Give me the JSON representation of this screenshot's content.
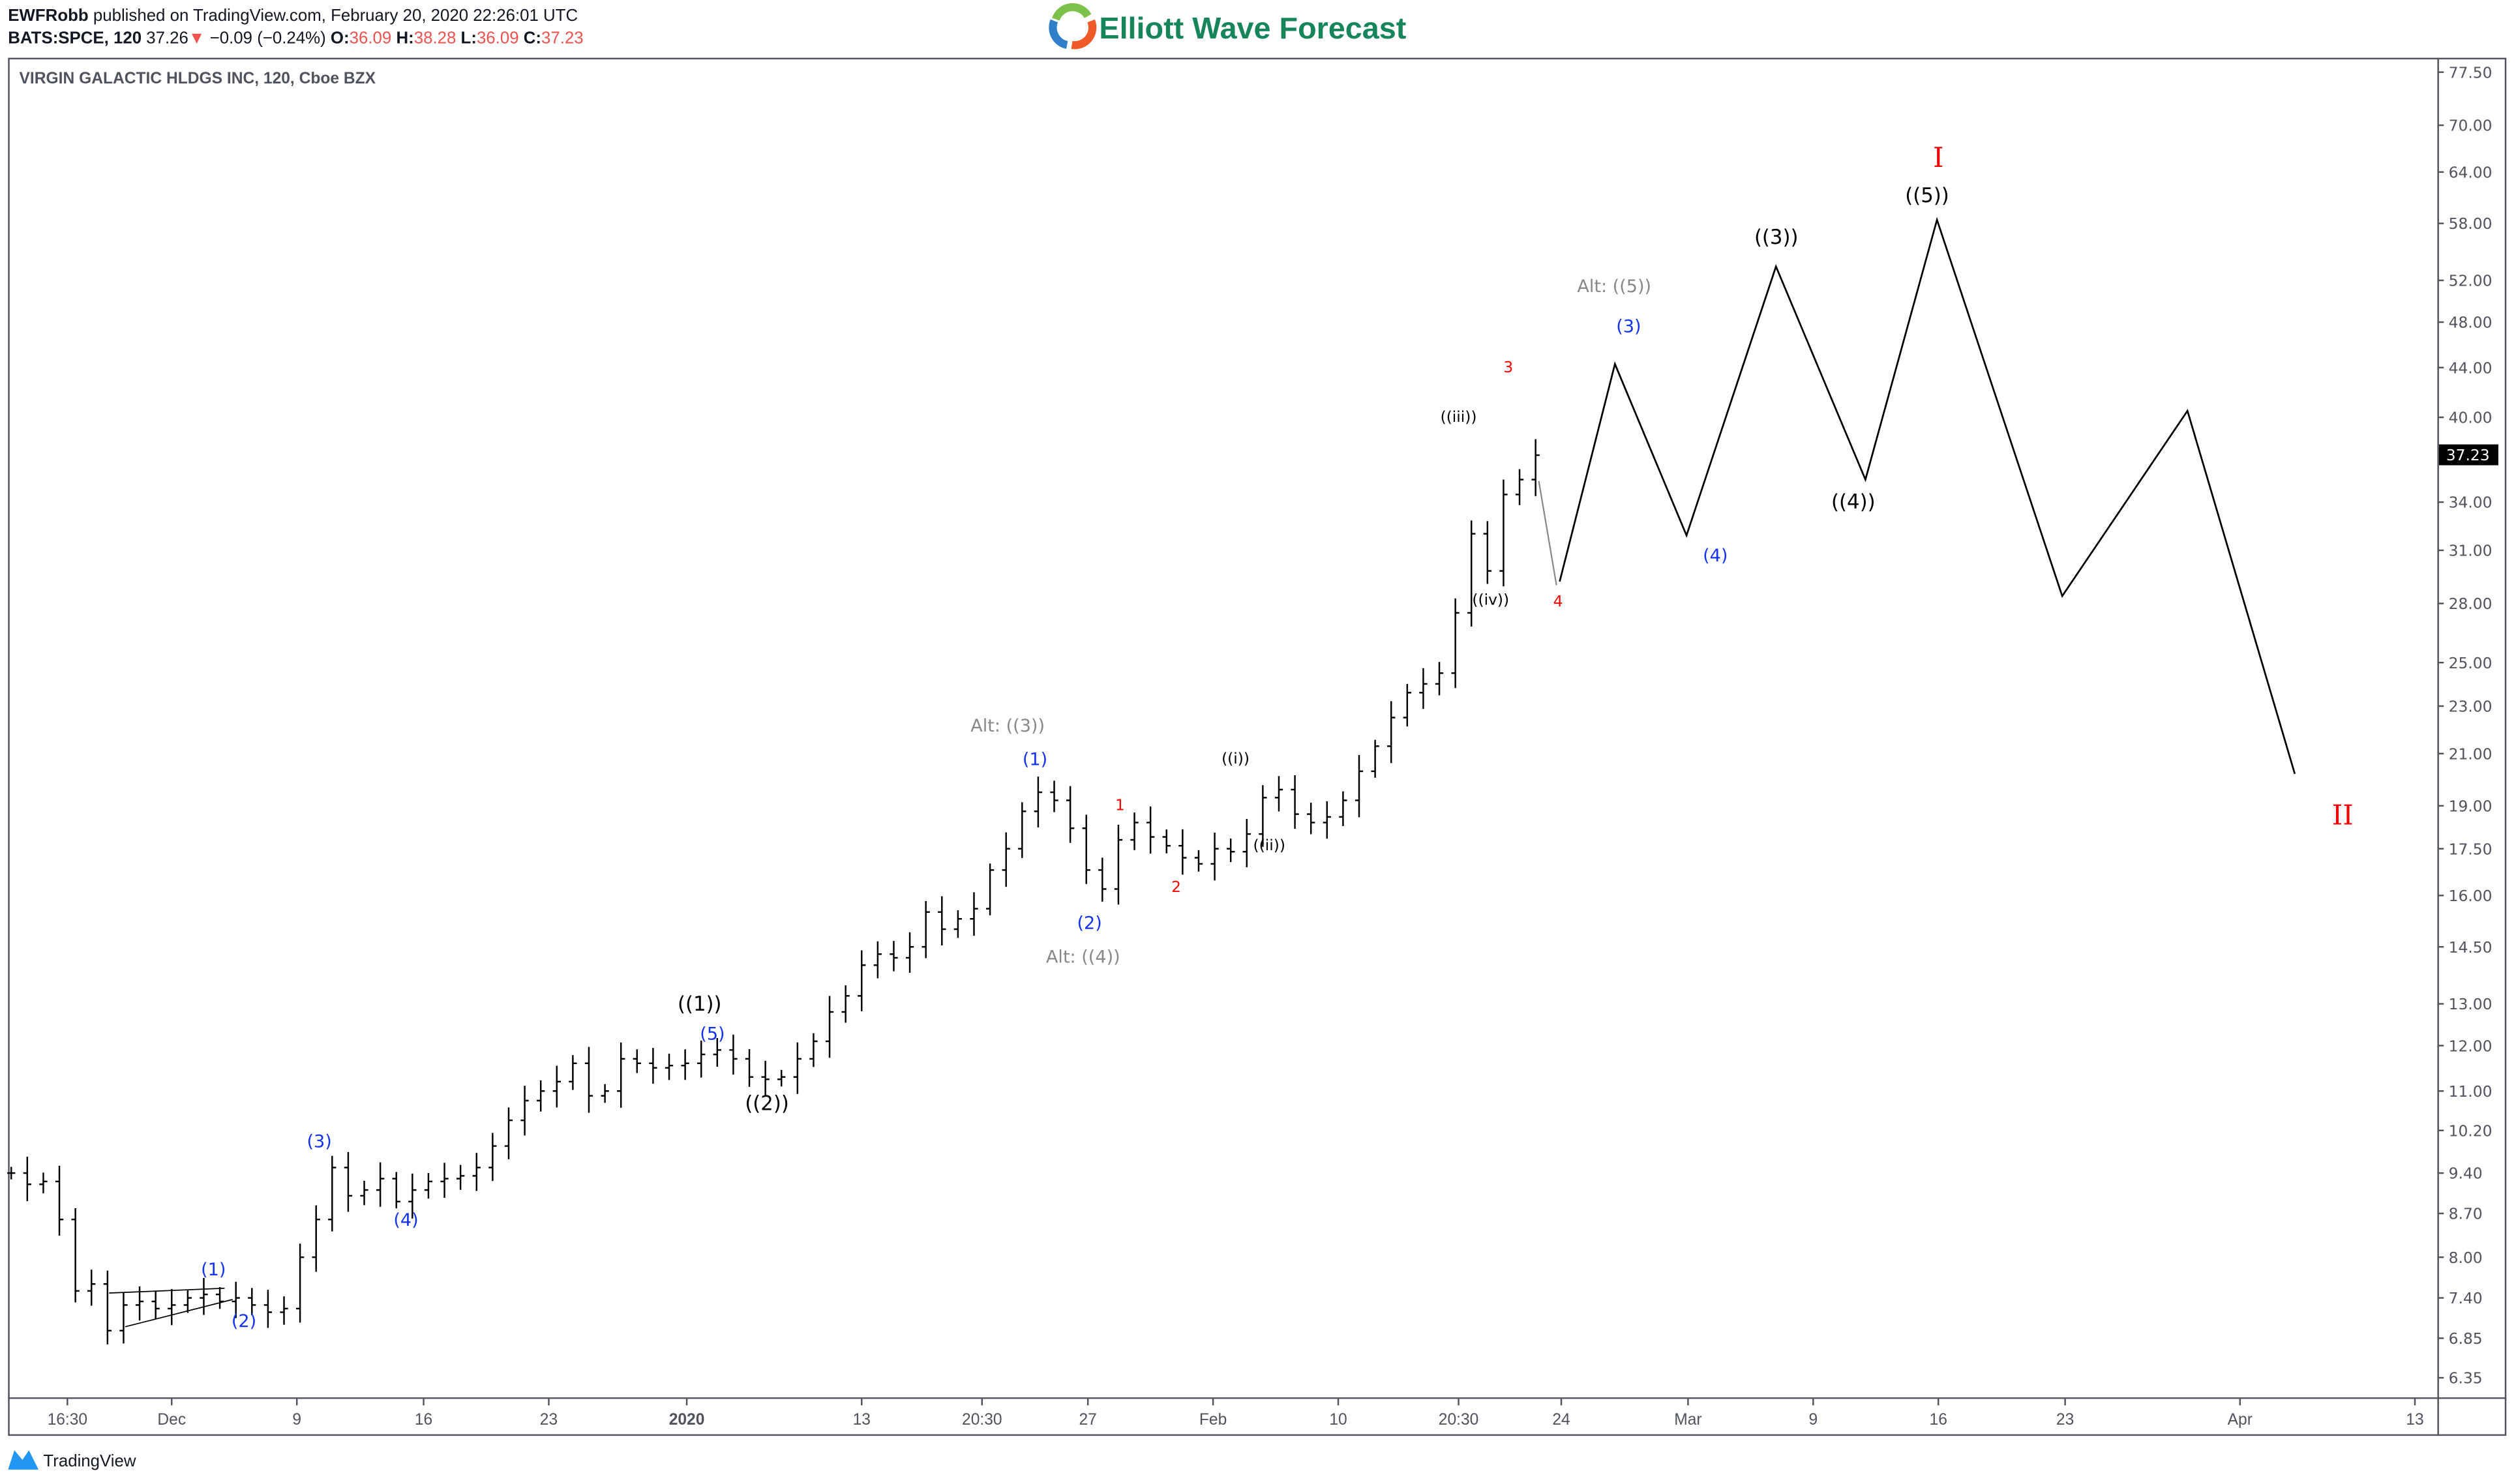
{
  "header": {
    "author": "EWFRobb",
    "published": " published on TradingView.com, February 20, 2020 22:26:01 UTC",
    "symbol": "BATS:SPCE, 120",
    "last": "37.26",
    "change": "−0.09 (−0.24%)",
    "o_label": "O:",
    "o": "36.09",
    "h_label": "H:",
    "h": "38.28",
    "l_label": "L:",
    "l": "36.09",
    "c_label": "C:",
    "c": "37.23"
  },
  "logo": {
    "text": "Elliott Wave Forecast",
    "color": "#17855a"
  },
  "chart_title": "VIRGIN GALACTIC HLDGS INC, 120, Cboe BZX",
  "footer": {
    "brand": "TradingView"
  },
  "colors": {
    "blue_label": "#1433f0",
    "red_label": "#ff0000",
    "alt_label": "#888888",
    "price_tag_bg": "#000000",
    "down": "#ef5350"
  },
  "chart_data": {
    "type": "ohlc-bar",
    "yscale": "log",
    "ylim": [
      6.1,
      80
    ],
    "current_price": "37.23",
    "y_ticks": [
      "77.50",
      "70.00",
      "64.00",
      "58.00",
      "52.00",
      "48.00",
      "44.00",
      "40.00",
      "34.00",
      "31.00",
      "28.00",
      "25.00",
      "23.00",
      "21.00",
      "19.00",
      "17.50",
      "16.00",
      "14.50",
      "13.00",
      "12.00",
      "11.00",
      "10.20",
      "9.40",
      "8.70",
      "8.00",
      "7.40",
      "6.85",
      "6.35"
    ],
    "x_ticks": [
      "16:30",
      "Dec",
      "9",
      "16",
      "23",
      "2020",
      "13",
      "20:30",
      "27",
      "Feb",
      "10",
      "20:30",
      "24",
      "Mar",
      "9",
      "16",
      "23",
      "Apr",
      "13"
    ],
    "closes": [
      9.4,
      9.2,
      9.25,
      8.6,
      7.5,
      7.6,
      6.95,
      7.3,
      7.35,
      7.25,
      7.3,
      7.4,
      7.45,
      7.35,
      7.4,
      7.3,
      7.2,
      7.25,
      8.0,
      8.6,
      9.5,
      9.0,
      9.1,
      9.3,
      8.9,
      9.1,
      9.25,
      9.3,
      9.35,
      9.5,
      9.9,
      10.4,
      10.8,
      11.0,
      11.2,
      11.6,
      10.9,
      11.0,
      11.7,
      11.6,
      11.5,
      11.55,
      11.6,
      11.8,
      11.9,
      11.7,
      11.3,
      11.25,
      11.3,
      11.7,
      12.1,
      12.8,
      13.2,
      14.0,
      14.3,
      14.2,
      14.5,
      15.5,
      15.0,
      15.3,
      15.6,
      16.8,
      17.5,
      18.8,
      19.5,
      19.2,
      18.2,
      16.8,
      16.2,
      17.8,
      18.4,
      17.9,
      17.6,
      17.2,
      17.0,
      17.5,
      17.4,
      18.0,
      19.3,
      19.6,
      18.7,
      18.4,
      18.6,
      19.2,
      20.3,
      21.3,
      22.5,
      23.6,
      24.0,
      24.5,
      27.5,
      32.0,
      29.8,
      34.5,
      35.5,
      37.2
    ],
    "projection_alt": [
      {
        "date": "2020-02-21",
        "price": 35.4
      },
      {
        "date": "2020-02-24",
        "price": 29.0
      }
    ],
    "projection": [
      {
        "date": "2020-02-24",
        "price": 29.2
      },
      {
        "date": "2020-02-27",
        "price": 44.3
      },
      {
        "date": "2020-03-02",
        "price": 31.9
      },
      {
        "date": "2020-03-07",
        "price": 53.4
      },
      {
        "date": "2020-03-12",
        "price": 35.5
      },
      {
        "date": "2020-03-16",
        "price": 58.4
      },
      {
        "date": "2020-03-23",
        "price": 28.4
      },
      {
        "date": "2020-03-30",
        "price": 40.5
      },
      {
        "date": "2020-04-05",
        "price": 20.2
      }
    ],
    "wave_labels": [
      {
        "text": "(1)",
        "color": "blue"
      },
      {
        "text": "(2)",
        "color": "blue"
      },
      {
        "text": "(3)",
        "color": "blue"
      },
      {
        "text": "(4)",
        "color": "blue"
      },
      {
        "text": "((1))",
        "color": "black"
      },
      {
        "text": "(5)",
        "color": "blue"
      },
      {
        "text": "((2))",
        "color": "black"
      },
      {
        "text": "Alt: ((3))",
        "color": "grey"
      },
      {
        "text": "(1)",
        "color": "blue"
      },
      {
        "text": "(2)",
        "color": "blue"
      },
      {
        "text": "Alt: ((4))",
        "color": "grey"
      },
      {
        "text": "1",
        "color": "red"
      },
      {
        "text": "2",
        "color": "red"
      },
      {
        "text": "((i))",
        "color": "black"
      },
      {
        "text": "((ii))",
        "color": "black"
      },
      {
        "text": "((iii))",
        "color": "black"
      },
      {
        "text": "((iv))",
        "color": "black"
      },
      {
        "text": "3",
        "color": "red"
      },
      {
        "text": "4",
        "color": "red"
      },
      {
        "text": "Alt: ((5))",
        "color": "grey"
      },
      {
        "text": "(3)",
        "color": "blue"
      },
      {
        "text": "(4)",
        "color": "blue"
      },
      {
        "text": "((3))",
        "color": "black"
      },
      {
        "text": "((4))",
        "color": "black"
      },
      {
        "text": "((5))",
        "color": "black"
      },
      {
        "text": "I",
        "color": "red"
      },
      {
        "text": "II",
        "color": "red"
      }
    ]
  }
}
